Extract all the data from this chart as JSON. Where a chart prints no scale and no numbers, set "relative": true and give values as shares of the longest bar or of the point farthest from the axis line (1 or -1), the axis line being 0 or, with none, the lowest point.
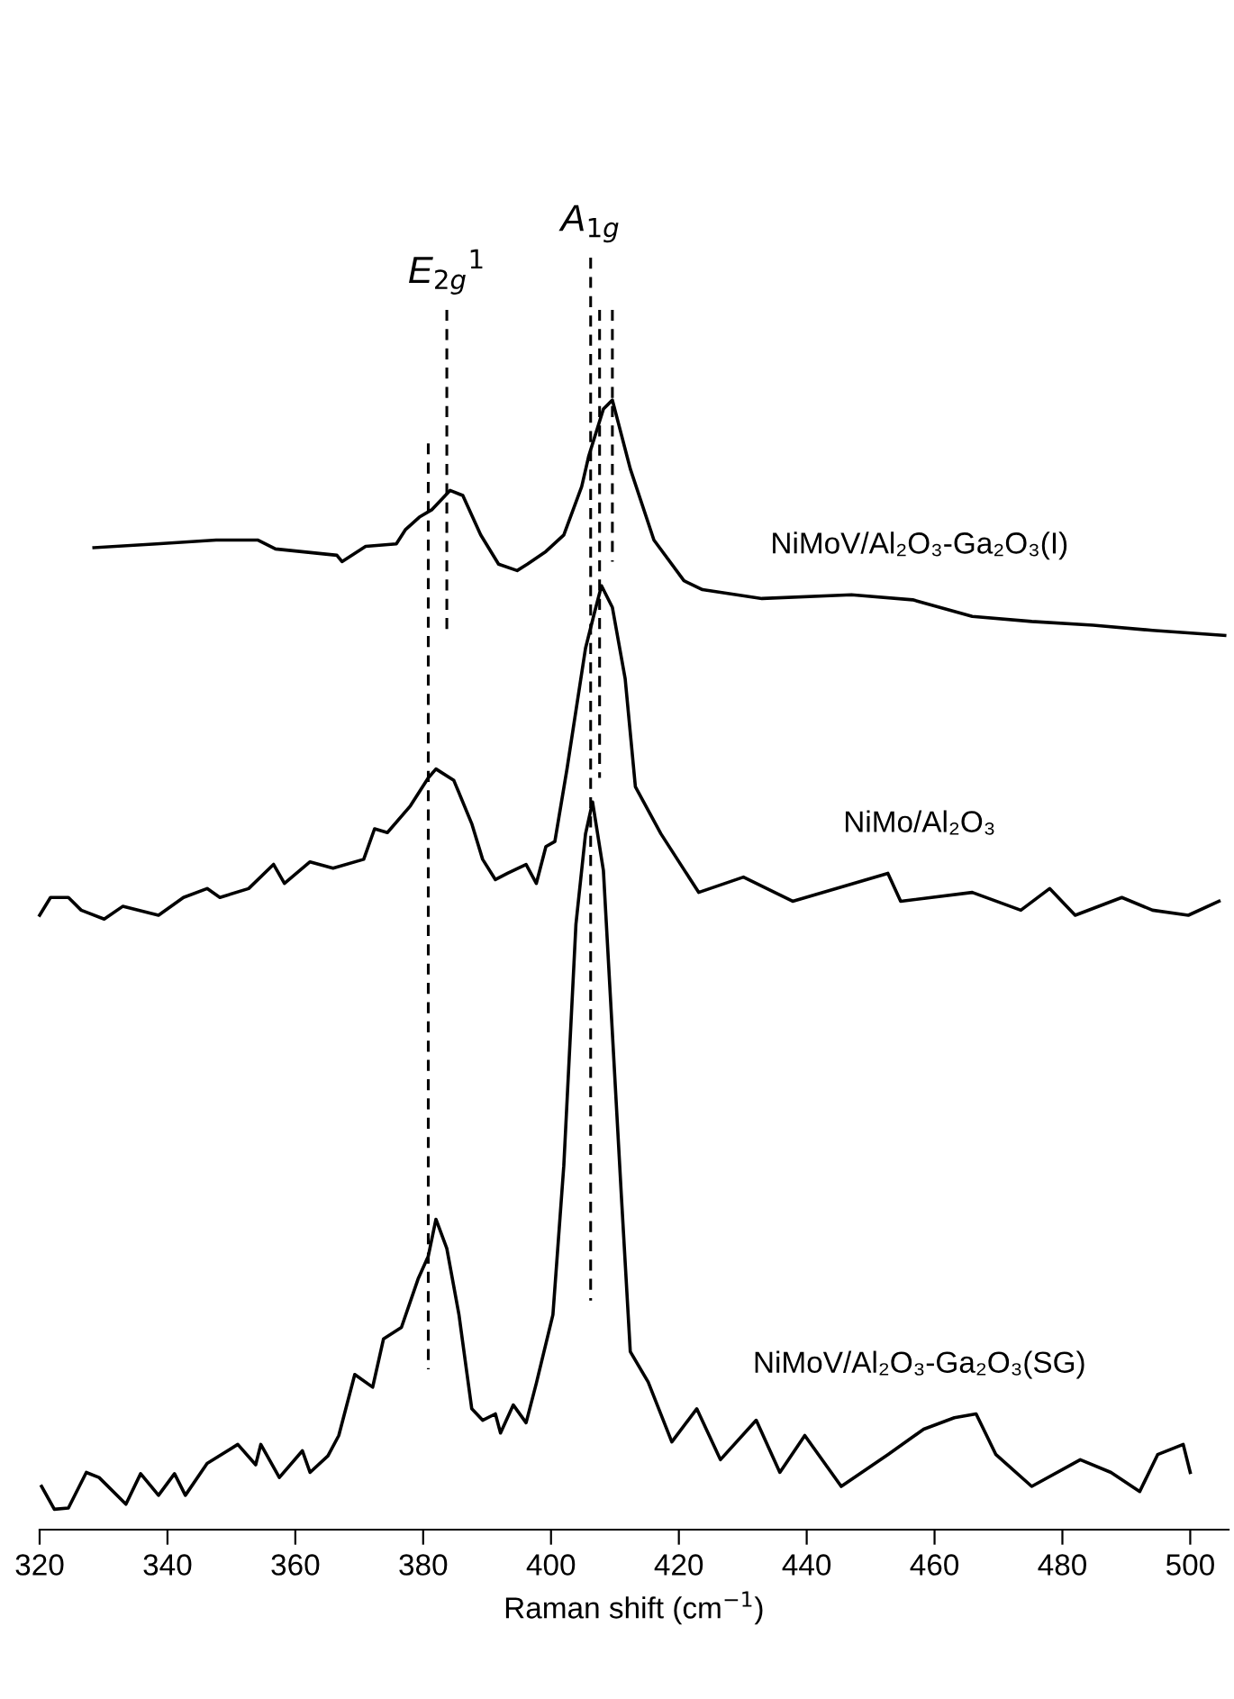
{
  "chart_data": {
    "type": "line",
    "relative": true,
    "xlabel": "Raman shift (cm$^{−1}$)",
    "xlim": [
      320,
      506
    ],
    "xticks": [
      320,
      340,
      360,
      380,
      400,
      420,
      440,
      460,
      480,
      500
    ],
    "grid": false,
    "legend": false,
    "marker": "none",
    "series": [
      {
        "name": "NiMoV/Al₂O₃-Ga₂O₃(I)",
        "color": "#000000",
        "line_style": "solid",
        "x": [
          328.5,
          338.3,
          347.6,
          354.1,
          356.9,
          366.5,
          367.3,
          371.0,
          375.8,
          377.2,
          379.4,
          381.4,
          384.2,
          386.2,
          389.0,
          391.8,
          394.7,
          396.3,
          399.2,
          402.0,
          404.8,
          405.9,
          408.2,
          409.6,
          412.4,
          416.1,
          420.8,
          423.7,
          433.0,
          447.0,
          456.6,
          465.9,
          475.2,
          484.8,
          494.1,
          505.4
        ],
        "values": [
          0.772,
          0.775,
          0.778,
          0.778,
          0.771,
          0.766,
          0.761,
          0.773,
          0.775,
          0.786,
          0.796,
          0.802,
          0.817,
          0.813,
          0.782,
          0.759,
          0.754,
          0.759,
          0.769,
          0.782,
          0.82,
          0.844,
          0.881,
          0.888,
          0.834,
          0.778,
          0.746,
          0.739,
          0.732,
          0.735,
          0.731,
          0.718,
          0.714,
          0.711,
          0.707,
          0.703
        ]
      },
      {
        "name": "NiMo/Al₂O₃",
        "color": "#000000",
        "line_style": "solid",
        "x": [
          320,
          321.7,
          324.5,
          326.5,
          330.1,
          333.0,
          338.6,
          342.5,
          346.2,
          348.2,
          352.7,
          356.6,
          358.3,
          362.3,
          365.9,
          370.7,
          372.4,
          374.4,
          378.0,
          380.8,
          382.0,
          384.8,
          387.6,
          389.3,
          391.3,
          393.2,
          396.1,
          397.7,
          399.2,
          400.6,
          402.5,
          405.4,
          406.8,
          407.9,
          409.6,
          411.6,
          413.2,
          417.2,
          423.1,
          430.1,
          437.8,
          452.7,
          454.7,
          465.9,
          473.5,
          478.0,
          482.0,
          489.3,
          494.1,
          499.7,
          504.5
        ],
        "values": [
          0.483,
          0.497,
          0.497,
          0.487,
          0.48,
          0.49,
          0.483,
          0.497,
          0.504,
          0.497,
          0.504,
          0.523,
          0.508,
          0.525,
          0.52,
          0.527,
          0.551,
          0.548,
          0.569,
          0.591,
          0.598,
          0.589,
          0.555,
          0.527,
          0.511,
          0.516,
          0.523,
          0.508,
          0.537,
          0.541,
          0.598,
          0.693,
          0.721,
          0.742,
          0.725,
          0.669,
          0.584,
          0.547,
          0.501,
          0.513,
          0.494,
          0.516,
          0.494,
          0.501,
          0.487,
          0.504,
          0.483,
          0.497,
          0.487,
          0.483,
          0.494
        ]
      },
      {
        "name": "NiMoV/Al₂O₃-Ga₂O₃(SG)",
        "color": "#000000",
        "line_style": "solid",
        "x": [
          320.3,
          322.3,
          324.5,
          327.3,
          329.3,
          333.5,
          335.8,
          338.6,
          341.1,
          342.8,
          346.2,
          351.0,
          353.8,
          354.6,
          357.5,
          361.1,
          362.3,
          365.1,
          366.8,
          369.3,
          372.1,
          373.8,
          376.6,
          379.2,
          380.8,
          382.0,
          383.7,
          385.6,
          387.6,
          389.3,
          391.3,
          392.1,
          394.1,
          396.1,
          397.7,
          400.3,
          402.0,
          403.9,
          405.4,
          406.5,
          408.2,
          411.0,
          412.4,
          415.2,
          418.9,
          422.8,
          426.5,
          432.1,
          435.8,
          439.7,
          445.4,
          452.7,
          458.3,
          463.1,
          466.5,
          469.6,
          475.2,
          482.8,
          487.6,
          492.1,
          494.9,
          498.9,
          500.0
        ],
        "values": [
          0.034,
          0.016,
          0.017,
          0.045,
          0.041,
          0.02,
          0.044,
          0.027,
          0.044,
          0.027,
          0.052,
          0.067,
          0.051,
          0.067,
          0.041,
          0.062,
          0.045,
          0.058,
          0.074,
          0.122,
          0.112,
          0.15,
          0.159,
          0.197,
          0.215,
          0.244,
          0.221,
          0.169,
          0.095,
          0.086,
          0.091,
          0.076,
          0.098,
          0.084,
          0.115,
          0.169,
          0.286,
          0.476,
          0.547,
          0.572,
          0.518,
          0.263,
          0.14,
          0.116,
          0.069,
          0.095,
          0.055,
          0.086,
          0.045,
          0.074,
          0.034,
          0.059,
          0.079,
          0.088,
          0.091,
          0.059,
          0.034,
          0.055,
          0.045,
          0.03,
          0.059,
          0.067,
          0.045
        ]
      },
      {
        "color": "#000000",
        "line_style": "dashed",
        "x": [
          380.8,
          380.8
        ],
        "values": [
          0.854,
          0.126
        ]
      },
      {
        "color": "#000000",
        "line_style": "dashed",
        "x": [
          383.7,
          383.7
        ],
        "values": [
          0.959,
          0.707
        ]
      },
      {
        "color": "#000000",
        "line_style": "dashed",
        "x": [
          406.2,
          406.2
        ],
        "values": [
          1.0,
          0.18
        ]
      },
      {
        "color": "#000000",
        "line_style": "dashed",
        "x": [
          407.6,
          407.6
        ],
        "values": [
          0.959,
          0.591
        ]
      },
      {
        "color": "#000000",
        "line_style": "dashed",
        "x": [
          409.6,
          409.6
        ],
        "values": [
          0.959,
          0.761
        ]
      }
    ],
    "annotations": [
      {
        "text": "E$_{2g}$$^{1}$",
        "x": 383.7,
        "y": 0.959
      },
      {
        "text": "A$_{1g}$",
        "x": 406.2,
        "y": 1.0
      }
    ]
  }
}
